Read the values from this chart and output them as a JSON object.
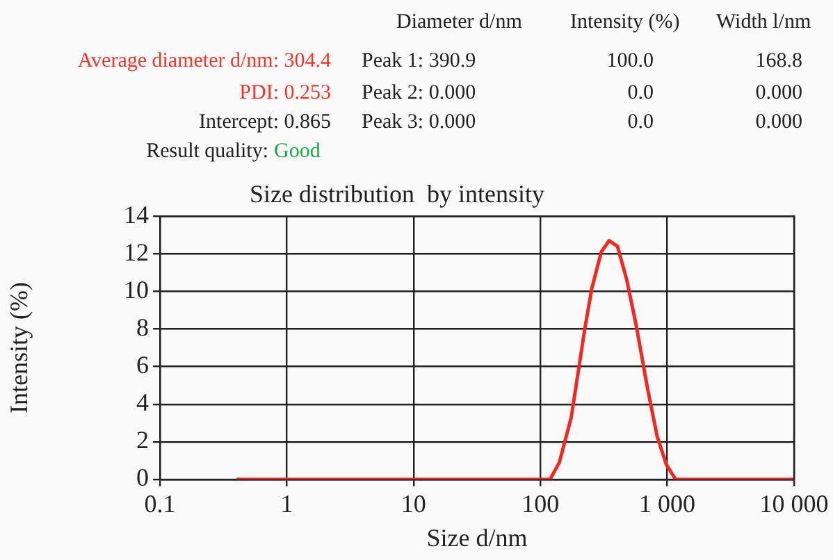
{
  "chart_data": {
    "type": "line",
    "title": "Size distribution  by intensity",
    "xlabel": "Size d/nm",
    "ylabel": "Intensity (%)",
    "annotations": [
      "Diameter d/nm",
      "Intensity (%)",
      "Width l/nm",
      "Average diameter d/nm: 304.4",
      "Peak 1:  390.9",
      "100.0",
      "168.8",
      "PDI: 0.253",
      "Peak 2:  0.000",
      "0.0",
      "0.000",
      "Intercept: 0.865",
      "Peak 3:  0.000",
      "0.0",
      "0.000",
      "Result quality:",
      "Good"
    ],
    "x": [
      0.4,
      100,
      119,
      141,
      175,
      225,
      255,
      302,
      348,
      405,
      480,
      569,
      701,
      832,
      982,
      1164,
      10000
    ],
    "series": [
      {
        "color": "#ee2a24",
        "values": [
          0,
          0,
          0,
          0.9,
          3.3,
          8.1,
          10.2,
          12.1,
          12.7,
          12.4,
          10.6,
          8.2,
          4.8,
          2.3,
          0.8,
          0,
          0
        ]
      }
    ],
    "log": "x",
    "xlim": [
      0.1,
      10000
    ],
    "xticks": [
      0.1,
      1,
      10,
      100,
      {
        "value": 1000,
        "label": "1 000"
      },
      {
        "value": 10000,
        "label": "10 000"
      }
    ],
    "ylim": [
      0,
      14
    ],
    "yticks": [
      0,
      2,
      4,
      6,
      8,
      10,
      12,
      14
    ],
    "grid": true,
    "legend": false,
    "marker": "none",
    "line_style": "solid"
  }
}
